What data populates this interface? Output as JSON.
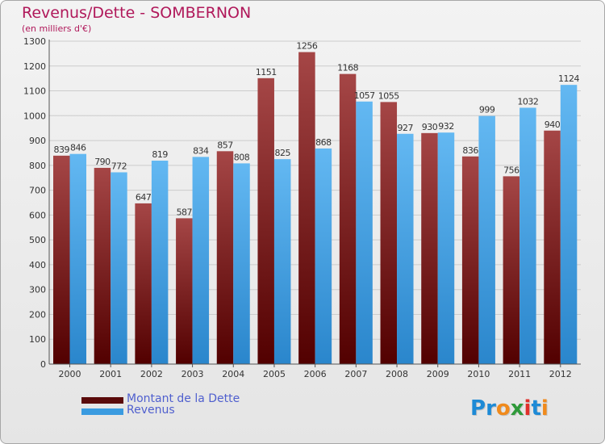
{
  "title": "Revenus/Dette - SOMBERNON",
  "subtitle": "(en milliers d'€)",
  "logo": {
    "text": "Proxiti",
    "letters": [
      "P",
      "r",
      "o",
      "x",
      "i",
      "t",
      "i"
    ],
    "colors": [
      "#1d8ad6",
      "#1d8ad6",
      "#f08a1c",
      "#2f9a3a",
      "#e0302b",
      "#1d8ad6",
      "#f08a1c"
    ]
  },
  "colors": {
    "dette_top": "#a54646",
    "dette_bottom": "#520000",
    "revenus_top": "#63b8f2",
    "revenus_bottom": "#2a86cc",
    "title": "#b0185a",
    "legend_text": "#4f5fce",
    "grid": "#cccccc"
  },
  "chart_data": {
    "type": "bar",
    "title": "Revenus/Dette - SOMBERNON",
    "subtitle": "(en milliers d'€)",
    "categories": [
      "2000",
      "2001",
      "2002",
      "2003",
      "2004",
      "2005",
      "2006",
      "2007",
      "2008",
      "2009",
      "2010",
      "2011",
      "2012"
    ],
    "series": [
      {
        "name": "Montant de la Dette",
        "values": [
          839,
          790,
          647,
          587,
          857,
          1151,
          1256,
          1168,
          1055,
          930,
          836,
          756,
          940
        ]
      },
      {
        "name": "Revenus",
        "values": [
          846,
          772,
          819,
          834,
          808,
          825,
          868,
          1057,
          927,
          932,
          999,
          1032,
          1124
        ]
      }
    ],
    "yticks": [
      0,
      100,
      200,
      300,
      400,
      500,
      600,
      700,
      800,
      900,
      1000,
      1100,
      1200,
      1300
    ],
    "ylim": [
      0,
      1300
    ],
    "grid": true,
    "legend_position": "bottom-left"
  }
}
